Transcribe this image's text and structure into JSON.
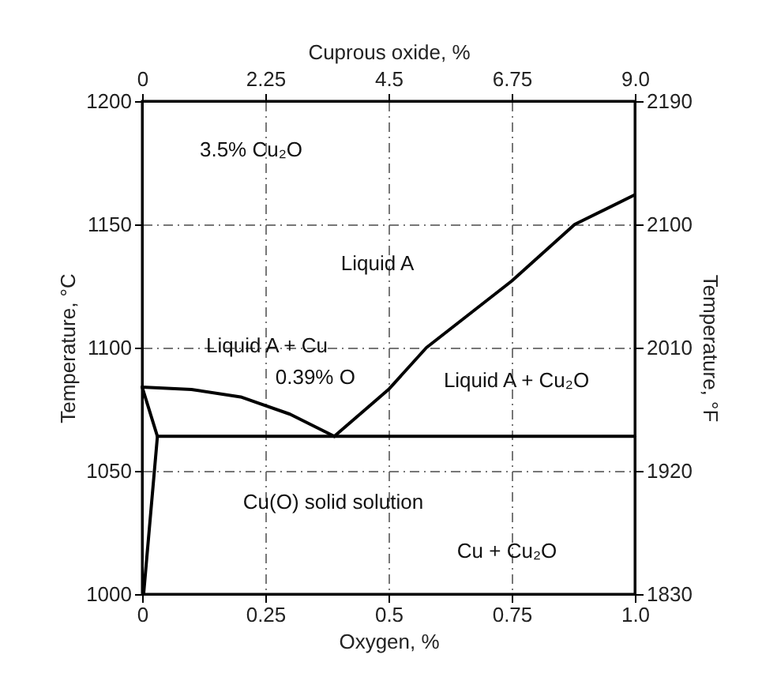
{
  "chart_data": {
    "type": "line",
    "xlabel": "Oxygen, %",
    "ylabel": "Temperature, °C",
    "y2label": "Temperature, °F",
    "x2label": "Cuprous oxide, %",
    "xlim": [
      0,
      1
    ],
    "xticks": [
      0,
      0.25,
      0.5,
      0.75,
      {
        "value": 1,
        "label": "1.0"
      }
    ],
    "x2lim": [
      0,
      9
    ],
    "x2ticks": [
      0,
      2.25,
      4.5,
      6.75,
      {
        "value": 9,
        "label": "9.0"
      }
    ],
    "ylim": [
      1000,
      1200
    ],
    "yticks": [
      1000,
      1050,
      1100,
      1150,
      1200
    ],
    "y2lim": [
      1830,
      2190
    ],
    "y2ticks": [
      1830,
      1920,
      2010,
      2100,
      2190
    ],
    "grid": true,
    "line_style": "solid",
    "series": [
      {
        "color": "#000000",
        "x": [
          0.39,
          0.5,
          0.577,
          0.75,
          0.878,
          1.0
        ],
        "values": [
          1064,
          1083,
          1100,
          1127,
          1150,
          1162
        ]
      },
      {
        "color": "#000000",
        "x": [
          0,
          0.1,
          0.2,
          0.3,
          0.39
        ],
        "values": [
          1084,
          1083,
          1080,
          1073,
          1064
        ]
      },
      {
        "color": "#000000",
        "x": [
          0.031,
          1.0
        ],
        "values": [
          1064,
          1064
        ]
      },
      {
        "color": "#000000",
        "x": [
          0,
          0.031,
          0.003
        ],
        "values": [
          1084,
          1064,
          1000
        ]
      }
    ],
    "annotations": [
      "3.5% Cu₂O",
      "Liquid A",
      "Liquid A + Cu",
      {
        "text": "0.39% O",
        "x": 0.39,
        "y": 1064
      },
      "Liquid A + Cu₂O",
      "Cu(O) solid solution",
      "Cu + Cu₂O"
    ]
  }
}
